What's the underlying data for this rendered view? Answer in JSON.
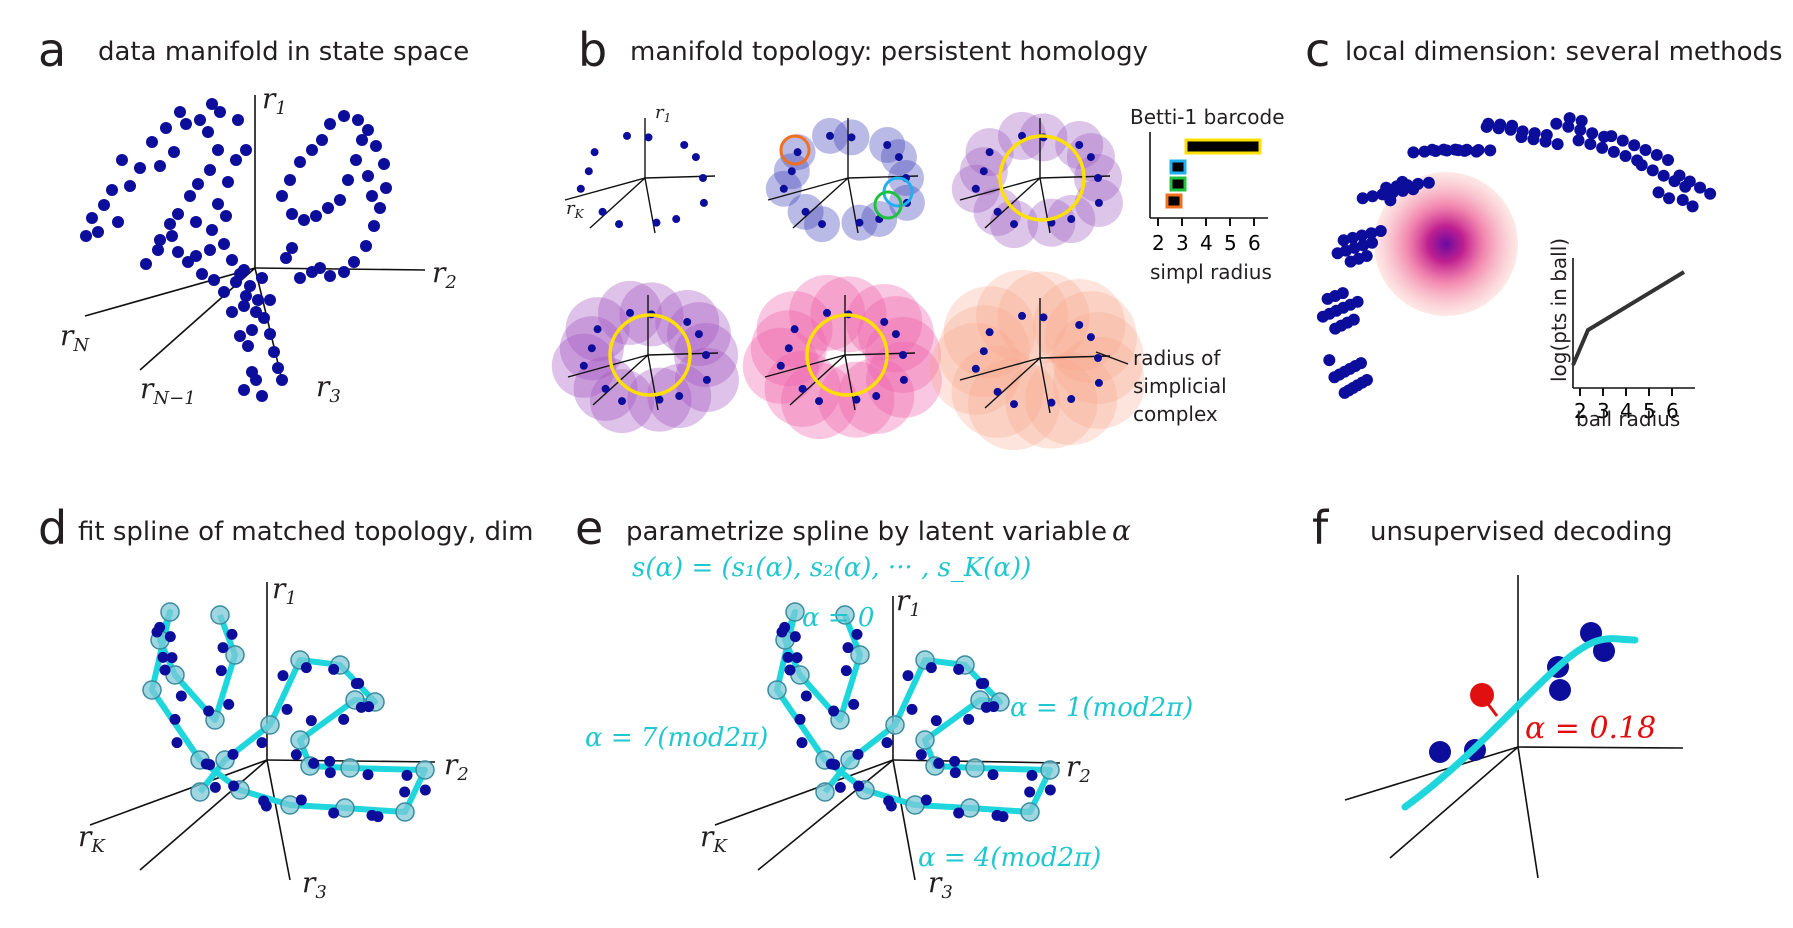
{
  "colors": {
    "points": "#0d0d9c",
    "spline": "#1fc7cf",
    "decode": "#e01010",
    "loop": "#ffe000",
    "pink": "#ef5fa9",
    "purple": "#a060c0",
    "salmon": "#f7a58c"
  },
  "panels": {
    "a": {
      "letter": "a",
      "title": "data manifold in state space",
      "axes": {
        "r1": "r",
        "r1_sub": "1",
        "r2": "r",
        "r2_sub": "2",
        "r3": "r",
        "r3_sub": "3",
        "rN": "r",
        "rN_sub": "N",
        "rN1": "r",
        "rN1_sub": "N−1"
      }
    },
    "b": {
      "letter": "b",
      "title": "manifold topology: persistent homology",
      "axes": {
        "r1": "r",
        "r1_sub": "1",
        "rK": "r",
        "rK_sub": "K"
      },
      "barcode": {
        "title": "Betti-1 barcode",
        "xlabel": "simpl radius",
        "ticks": [
          "2",
          "3",
          "4",
          "5",
          "6"
        ]
      },
      "radius_label": [
        "radius of",
        "simplicial",
        "complex"
      ]
    },
    "c": {
      "letter": "c",
      "title": "local dimension: several methods",
      "inset": {
        "ylabel": "log(pts in ball)",
        "xlabel": "ball radius",
        "ticks": [
          "2",
          "3",
          "4",
          "5",
          "6"
        ]
      }
    },
    "d": {
      "letter": "d",
      "title": "fit spline of matched topology, dim",
      "axes": {
        "r1": "r",
        "r1_sub": "1",
        "r2": "r",
        "r2_sub": "2",
        "r3": "r",
        "r3_sub": "3",
        "rK": "r",
        "rK_sub": "K"
      }
    },
    "e": {
      "letter": "e",
      "title": "parametrize spline by latent  variable",
      "title_var": "α",
      "formula": "s(α) = (s₁(α), s₂(α), ··· , s_K(α))",
      "labels": {
        "a0": "α = 0",
        "a1": "α = 1(mod2π)",
        "a4": "α = 4(mod2π)",
        "a7": "α = 7(mod2π)"
      },
      "axes": {
        "r1": "r",
        "r1_sub": "1",
        "r2": "r",
        "r2_sub": "2",
        "r3": "r",
        "r3_sub": "3",
        "rK": "r",
        "rK_sub": "K"
      }
    },
    "f": {
      "letter": "f",
      "title": "unsupervised decoding",
      "decoded": "α = 0.18"
    }
  }
}
